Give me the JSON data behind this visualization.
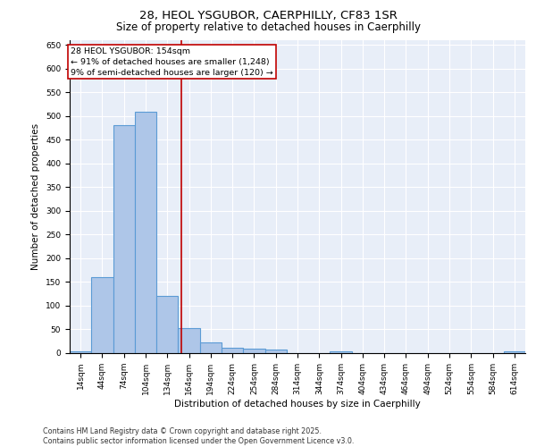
{
  "title_line1": "28, HEOL YSGUBOR, CAERPHILLY, CF83 1SR",
  "title_line2": "Size of property relative to detached houses in Caerphilly",
  "xlabel": "Distribution of detached houses by size in Caerphilly",
  "ylabel": "Number of detached properties",
  "footer_line1": "Contains HM Land Registry data © Crown copyright and database right 2025.",
  "footer_line2": "Contains public sector information licensed under the Open Government Licence v3.0.",
  "categories": [
    "14sqm",
    "44sqm",
    "74sqm",
    "104sqm",
    "134sqm",
    "164sqm",
    "194sqm",
    "224sqm",
    "254sqm",
    "284sqm",
    "314sqm",
    "344sqm",
    "374sqm",
    "404sqm",
    "434sqm",
    "464sqm",
    "494sqm",
    "524sqm",
    "554sqm",
    "584sqm",
    "614sqm"
  ],
  "values": [
    3,
    160,
    480,
    510,
    120,
    52,
    22,
    12,
    10,
    7,
    0,
    0,
    4,
    0,
    0,
    0,
    0,
    0,
    0,
    0,
    3
  ],
  "bar_color": "#aec6e8",
  "bar_edge_color": "#5b9bd5",
  "bar_linewidth": 0.8,
  "vline_color": "#c00000",
  "annotation_text": "28 HEOL YSGUBOR: 154sqm\n← 91% of detached houses are smaller (1,248)\n9% of semi-detached houses are larger (120) →",
  "annotation_box_color": "#c00000",
  "ylim": [
    0,
    660
  ],
  "yticks": [
    0,
    50,
    100,
    150,
    200,
    250,
    300,
    350,
    400,
    450,
    500,
    550,
    600,
    650
  ],
  "plot_bg_color": "#e8eef8",
  "fig_bg_color": "#ffffff",
  "title_fontsize": 9.5,
  "subtitle_fontsize": 8.5,
  "tick_fontsize": 6.5,
  "label_fontsize": 7.5,
  "footer_fontsize": 5.8,
  "annot_fontsize": 6.8
}
